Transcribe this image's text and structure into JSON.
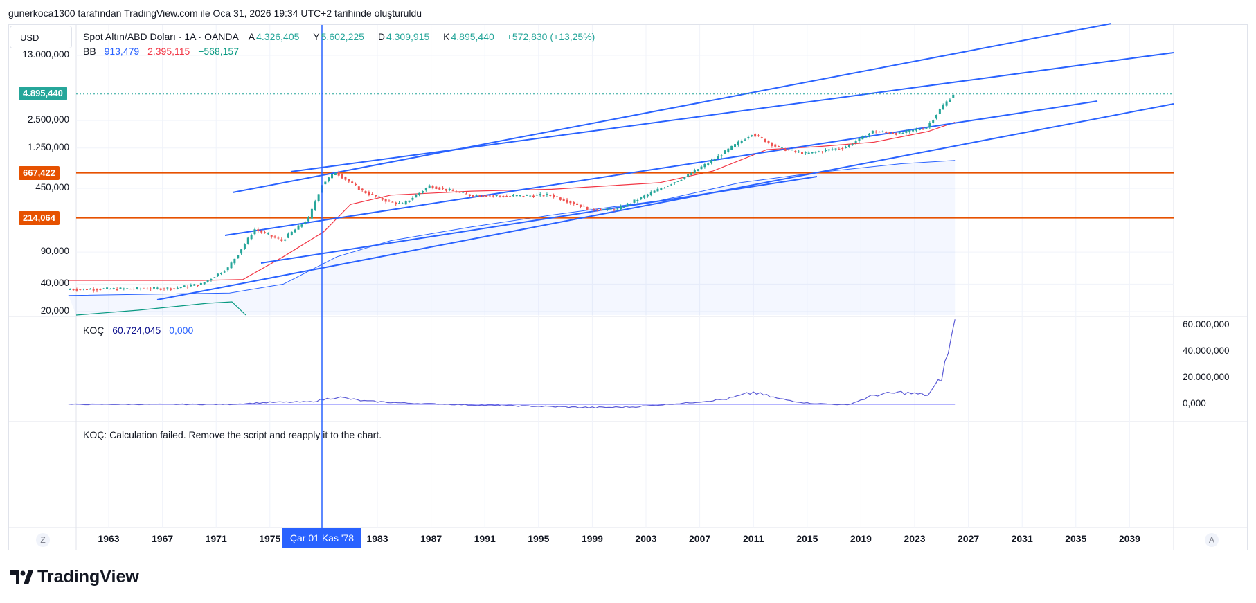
{
  "header": {
    "attribution": "gunerkoca1300 tarafından TradingView.com ile Oca 31, 2026 19:34 UTC+2 tarihinde oluşturuldu"
  },
  "currency_button": "USD",
  "legend_main": {
    "symbol": "Spot Altın/ABD Doları · 1A · OANDA",
    "o_label": "A",
    "o_value": "4.326,405",
    "h_label": "Y",
    "h_value": "5.602,225",
    "l_label": "D",
    "l_value": "4.309,915",
    "c_label": "K",
    "c_value": "4.895,440",
    "change": "+572,830 (+13,25%)"
  },
  "legend_bb": {
    "label": "BB",
    "v1": "913,479",
    "v2": "2.395,115",
    "v3": "−568,157"
  },
  "legend_koc": {
    "label": "KOÇ",
    "v1": "60.724,045",
    "v2": "0,000"
  },
  "error_message": "KOÇ: Calculation failed. Remove the script and reapply it to the chart.",
  "price_badges": {
    "last": "4.895,440",
    "level_high": "667,422",
    "level_low": "214,064"
  },
  "cursor_date": "Çar 01 Kas '78",
  "scale_buttons": {
    "left": "Z",
    "right": "A"
  },
  "logo_text": "TradingView",
  "colors": {
    "up": "#26a69a",
    "down": "#ef5350",
    "accent": "#2962ff",
    "level": "#e65100",
    "basis": "#f23645",
    "lower": "#2962ff",
    "koc": "#5b5bd6"
  },
  "chart_data": {
    "type": "candlestick-log",
    "title": "Spot Altın/ABD Doları · 1A · OANDA",
    "y_scale": "log",
    "y_ticks": [
      "13.000,000",
      "2.500,000",
      "1.250,000",
      "450,000",
      "90,000",
      "40,000",
      "20,000"
    ],
    "y_tick_values": [
      13000,
      2500,
      1250,
      450,
      90,
      40,
      20
    ],
    "x_ticks": [
      "1963",
      "1967",
      "1971",
      "1975",
      "1983",
      "1987",
      "1991",
      "1995",
      "1999",
      "2003",
      "2007",
      "2011",
      "2015",
      "2019",
      "2023",
      "2027",
      "2031",
      "2035",
      "2039"
    ],
    "price_path": [
      [
        1960,
        35
      ],
      [
        1968,
        36
      ],
      [
        1970,
        40
      ],
      [
        1972,
        60
      ],
      [
        1974,
        160
      ],
      [
        1976,
        120
      ],
      [
        1978,
        210
      ],
      [
        1979,
        500
      ],
      [
        1980,
        680
      ],
      [
        1982,
        420
      ],
      [
        1984,
        320
      ],
      [
        1985,
        300
      ],
      [
        1987,
        480
      ],
      [
        1990,
        380
      ],
      [
        1993,
        370
      ],
      [
        1996,
        380
      ],
      [
        1999,
        265
      ],
      [
        2001,
        265
      ],
      [
        2003,
        370
      ],
      [
        2006,
        600
      ],
      [
        2008,
        900
      ],
      [
        2011,
        1800
      ],
      [
        2013,
        1250
      ],
      [
        2015,
        1080
      ],
      [
        2018,
        1280
      ],
      [
        2020,
        1900
      ],
      [
        2022,
        1800
      ],
      [
        2024,
        2100
      ],
      [
        2025,
        3300
      ],
      [
        2026,
        4895
      ]
    ],
    "bb_basis": [
      [
        1960,
        44
      ],
      [
        1970,
        44
      ],
      [
        1973,
        45
      ],
      [
        1976,
        80
      ],
      [
        1979,
        150
      ],
      [
        1981,
        300
      ],
      [
        1984,
        380
      ],
      [
        1990,
        420
      ],
      [
        1996,
        440
      ],
      [
        2004,
        520
      ],
      [
        2008,
        700
      ],
      [
        2012,
        1200
      ],
      [
        2016,
        1300
      ],
      [
        2020,
        1450
      ],
      [
        2024,
        1900
      ],
      [
        2026,
        2395
      ]
    ],
    "bb_lower": [
      [
        1960,
        30
      ],
      [
        1972,
        32
      ],
      [
        1976,
        40
      ],
      [
        1980,
        80
      ],
      [
        1984,
        120
      ],
      [
        1990,
        170
      ],
      [
        1996,
        230
      ],
      [
        2004,
        330
      ],
      [
        2010,
        520
      ],
      [
        2016,
        680
      ],
      [
        2022,
        840
      ],
      [
        2026,
        913
      ]
    ],
    "horizontal_levels": [
      667.422,
      214.064
    ],
    "last_price": 4895.44,
    "koc_y_ticks": [
      "60.000,000",
      "40.000,000",
      "20.000,000",
      "0,000"
    ],
    "koc_y_tick_values": [
      60000000,
      40000000,
      20000000,
      0
    ],
    "koc_series": [
      [
        1960,
        0
      ],
      [
        1972,
        0
      ],
      [
        1975,
        1500000
      ],
      [
        1978,
        1800000
      ],
      [
        1980,
        5500000
      ],
      [
        1982,
        2500000
      ],
      [
        1985,
        1000000
      ],
      [
        1990,
        -500000
      ],
      [
        1995,
        -1500000
      ],
      [
        1999,
        -2500000
      ],
      [
        2002,
        -2000000
      ],
      [
        2006,
        1000000
      ],
      [
        2009,
        4000000
      ],
      [
        2011,
        9000000
      ],
      [
        2013,
        4000000
      ],
      [
        2015,
        1000000
      ],
      [
        2018,
        -500000
      ],
      [
        2020,
        7000000
      ],
      [
        2022,
        9000000
      ],
      [
        2024,
        7000000
      ],
      [
        2025,
        20000000
      ],
      [
        2026,
        60724045
      ]
    ]
  }
}
